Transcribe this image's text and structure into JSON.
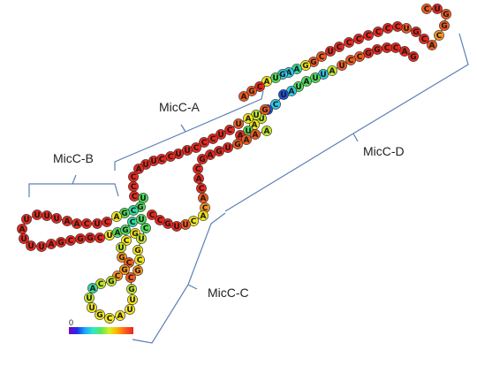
{
  "diagram": {
    "regions": [
      {
        "name": "MicC-A"
      },
      {
        "name": "MicC-B"
      },
      {
        "name": "MicC-C"
      },
      {
        "name": "MicC-D"
      }
    ],
    "colorscale": {
      "min_label": "0",
      "colors": [
        "#7a00c8",
        "#1e2ee8",
        "#18a8ff",
        "#2ee8c8",
        "#5ae85a",
        "#d8f020",
        "#ffb000",
        "#ff5a1a",
        "#e8281e"
      ]
    },
    "nucleotide_colors": {
      "red": "#e8281e",
      "orange": "#f05a1e",
      "orange_light": "#f7931e",
      "yellow": "#f2e51a",
      "yellow_green": "#c3e62a",
      "green": "#4fdc5a",
      "cyan_green": "#33d9a0",
      "cyan": "#2ec9e6",
      "blue": "#1e4fdc"
    }
  }
}
